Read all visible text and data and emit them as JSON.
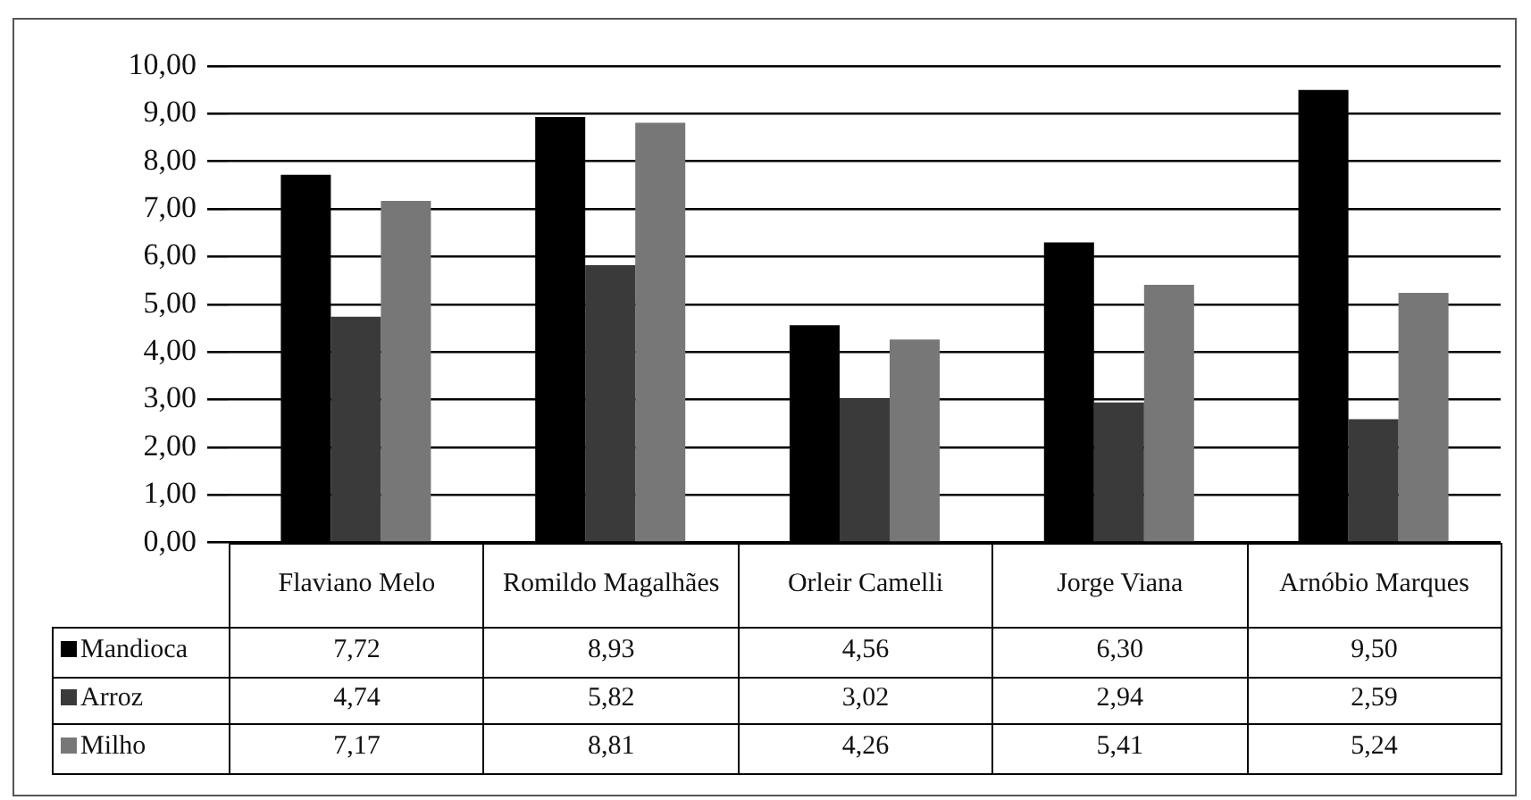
{
  "chart_data": {
    "type": "bar",
    "categories": [
      "Flaviano Melo",
      "Romildo Magalhães",
      "Orleir Camelli",
      "Jorge Viana",
      "Arnóbio Marques"
    ],
    "series": [
      {
        "name": "Mandioca",
        "color": "#000000",
        "values": [
          7.72,
          8.93,
          4.56,
          6.3,
          9.5
        ],
        "value_labels": [
          "7,72",
          "8,93",
          "4,56",
          "6,30",
          "9,50"
        ]
      },
      {
        "name": "Arroz",
        "color": "#3a3a3a",
        "values": [
          4.74,
          5.82,
          3.02,
          2.94,
          2.59
        ],
        "value_labels": [
          "4,74",
          "5,82",
          "3,02",
          "2,94",
          "2,59"
        ]
      },
      {
        "name": "Milho",
        "color": "#777777",
        "values": [
          7.17,
          8.81,
          4.26,
          5.41,
          5.24
        ],
        "value_labels": [
          "7,17",
          "8,81",
          "4,26",
          "5,41",
          "5,24"
        ]
      }
    ],
    "ylim": [
      0,
      10
    ],
    "yticks": [
      {
        "value": 0,
        "label": "0,00"
      },
      {
        "value": 1,
        "label": "1,00"
      },
      {
        "value": 2,
        "label": "2,00"
      },
      {
        "value": 3,
        "label": "3,00"
      },
      {
        "value": 4,
        "label": "4,00"
      },
      {
        "value": 5,
        "label": "5,00"
      },
      {
        "value": 6,
        "label": "6,00"
      },
      {
        "value": 7,
        "label": "7,00"
      },
      {
        "value": 8,
        "label": "8,00"
      },
      {
        "value": 9,
        "label": "9,00"
      },
      {
        "value": 10,
        "label": "10,00"
      }
    ],
    "grid": "y",
    "legend": "bottom"
  }
}
